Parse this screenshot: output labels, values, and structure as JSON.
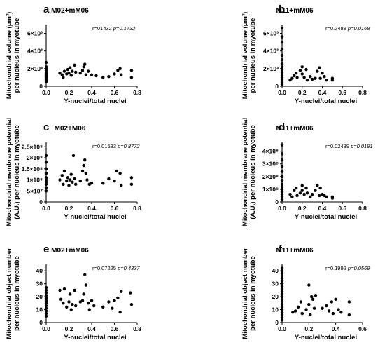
{
  "chart_data": [
    {
      "type": "scatter",
      "letter": "a",
      "title": "M02+mM06",
      "stat_r": "r=01432",
      "stat_p": "p=0.1732",
      "xlabel": "Y-nuclei/total nuclei",
      "ylabel": [
        "Mitochondrial volume (μm³)",
        "per nucleus in myotube"
      ],
      "xlim": [
        0,
        0.8
      ],
      "ylim": [
        0,
        7000
      ],
      "xticks": [
        {
          "value": 0,
          "label": "0.0"
        },
        {
          "value": 0.2,
          "label": "0.2"
        },
        {
          "value": 0.4,
          "label": "0.4"
        },
        {
          "value": 0.6,
          "label": "0.6"
        },
        {
          "value": 0.8,
          "label": "0.8"
        }
      ],
      "yticks": [
        {
          "value": 0,
          "label": "0"
        },
        {
          "value": 2000,
          "label": "2×10³"
        },
        {
          "value": 4000,
          "label": "4×10³"
        },
        {
          "value": 6000,
          "label": "6×10³"
        }
      ],
      "points": [
        [
          0,
          500
        ],
        [
          0,
          700
        ],
        [
          0,
          850
        ],
        [
          0,
          1000
        ],
        [
          0,
          1100
        ],
        [
          0,
          1200
        ],
        [
          0,
          1300
        ],
        [
          0,
          1450
        ],
        [
          0,
          1600
        ],
        [
          0,
          1800
        ],
        [
          0,
          2000
        ],
        [
          0,
          2200
        ],
        [
          0,
          2700
        ],
        [
          0.12,
          1500
        ],
        [
          0.14,
          1300
        ],
        [
          0.15,
          1000
        ],
        [
          0.16,
          1700
        ],
        [
          0.18,
          1400
        ],
        [
          0.19,
          1900
        ],
        [
          0.2,
          1500
        ],
        [
          0.21,
          2100
        ],
        [
          0.22,
          1250
        ],
        [
          0.23,
          1700
        ],
        [
          0.25,
          2400
        ],
        [
          0.26,
          1600
        ],
        [
          0.3,
          1500
        ],
        [
          0.32,
          1800
        ],
        [
          0.33,
          2200
        ],
        [
          0.34,
          2500
        ],
        [
          0.35,
          1300
        ],
        [
          0.37,
          1700
        ],
        [
          0.4,
          1300
        ],
        [
          0.44,
          1200
        ],
        [
          0.5,
          1000
        ],
        [
          0.55,
          1100
        ],
        [
          0.6,
          1400
        ],
        [
          0.63,
          1800
        ],
        [
          0.65,
          2000
        ],
        [
          0.66,
          1300
        ],
        [
          0.75,
          1800
        ],
        [
          0.75,
          1000
        ]
      ]
    },
    {
      "type": "scatter",
      "letter": "b",
      "title": "M11+mM06",
      "stat_r": "r=0.2488",
      "stat_p": "p=0.0168",
      "xlabel": "Y-nuclei/total nuclei",
      "ylabel": [
        "Mitochondrial volume (μm³)",
        "per nucleus in myotube"
      ],
      "xlim": [
        0,
        0.8
      ],
      "ylim": [
        0,
        7000
      ],
      "xticks": [
        {
          "value": 0,
          "label": "0.0"
        },
        {
          "value": 0.2,
          "label": "0.2"
        },
        {
          "value": 0.4,
          "label": "0.4"
        },
        {
          "value": 0.6,
          "label": "0.6"
        },
        {
          "value": 0.8,
          "label": "0.8"
        }
      ],
      "yticks": [
        {
          "value": 0,
          "label": "0"
        },
        {
          "value": 2000,
          "label": "2×10³"
        },
        {
          "value": 4000,
          "label": "4×10³"
        },
        {
          "value": 6000,
          "label": "6×10³"
        }
      ],
      "points": [
        [
          0,
          200
        ],
        [
          0,
          400
        ],
        [
          0,
          600
        ],
        [
          0,
          800
        ],
        [
          0,
          1000
        ],
        [
          0,
          1200
        ],
        [
          0,
          1400
        ],
        [
          0,
          1600
        ],
        [
          0,
          1900
        ],
        [
          0,
          2200
        ],
        [
          0,
          2600
        ],
        [
          0,
          3000
        ],
        [
          0,
          3500
        ],
        [
          0,
          4200
        ],
        [
          0,
          5000
        ],
        [
          0,
          5600
        ],
        [
          0,
          6600
        ],
        [
          0.08,
          700
        ],
        [
          0.1,
          900
        ],
        [
          0.12,
          1200
        ],
        [
          0.14,
          1500
        ],
        [
          0.15,
          1000
        ],
        [
          0.18,
          1800
        ],
        [
          0.2,
          1400
        ],
        [
          0.2,
          2200
        ],
        [
          0.22,
          1000
        ],
        [
          0.24,
          1900
        ],
        [
          0.25,
          700
        ],
        [
          0.28,
          1100
        ],
        [
          0.3,
          800
        ],
        [
          0.33,
          900
        ],
        [
          0.35,
          1700
        ],
        [
          0.37,
          2100
        ],
        [
          0.38,
          900
        ],
        [
          0.4,
          1500
        ],
        [
          0.42,
          1100
        ],
        [
          0.44,
          700
        ],
        [
          0.5,
          900
        ],
        [
          0.5,
          700
        ]
      ]
    },
    {
      "type": "scatter",
      "letter": "c",
      "title": "M02+M06",
      "stat_r": "r=0.01633",
      "stat_p": "p=0.8772",
      "xlabel": "Y-nuclei/total nuclei",
      "ylabel": [
        "Mitochondrial membrane potential",
        "(A.U.) per nucleus in myotube"
      ],
      "xlim": [
        0,
        0.8
      ],
      "ylim": [
        0,
        270000000
      ],
      "xticks": [
        {
          "value": 0,
          "label": "0.0"
        },
        {
          "value": 0.2,
          "label": "0.2"
        },
        {
          "value": 0.4,
          "label": "0.4"
        },
        {
          "value": 0.6,
          "label": "0.6"
        },
        {
          "value": 0.8,
          "label": "0.8"
        }
      ],
      "yticks": [
        {
          "value": 0,
          "label": "0"
        },
        {
          "value": 50000000,
          "label": "5×10⁷"
        },
        {
          "value": 100000000,
          "label": "1×10⁸"
        },
        {
          "value": 150000000,
          "label": "1.5×10⁸"
        },
        {
          "value": 200000000,
          "label": "2×10⁸"
        },
        {
          "value": 250000000,
          "label": "2.5×10⁸"
        }
      ],
      "points": [
        [
          0,
          50000000
        ],
        [
          0,
          65000000
        ],
        [
          0,
          80000000
        ],
        [
          0,
          90000000
        ],
        [
          0,
          100000000
        ],
        [
          0,
          110000000
        ],
        [
          0,
          130000000
        ],
        [
          0,
          150000000
        ],
        [
          0,
          180000000
        ],
        [
          0,
          210000000
        ],
        [
          0.12,
          100000000
        ],
        [
          0.14,
          120000000
        ],
        [
          0.15,
          80000000
        ],
        [
          0.16,
          140000000
        ],
        [
          0.18,
          95000000
        ],
        [
          0.19,
          110000000
        ],
        [
          0.2,
          75000000
        ],
        [
          0.21,
          100000000
        ],
        [
          0.22,
          125000000
        ],
        [
          0.23,
          90000000
        ],
        [
          0.24,
          210000000
        ],
        [
          0.25,
          105000000
        ],
        [
          0.26,
          80000000
        ],
        [
          0.3,
          95000000
        ],
        [
          0.32,
          140000000
        ],
        [
          0.33,
          165000000
        ],
        [
          0.34,
          190000000
        ],
        [
          0.35,
          130000000
        ],
        [
          0.36,
          100000000
        ],
        [
          0.38,
          80000000
        ],
        [
          0.4,
          85000000
        ],
        [
          0.5,
          85000000
        ],
        [
          0.55,
          105000000
        ],
        [
          0.6,
          95000000
        ],
        [
          0.62,
          140000000
        ],
        [
          0.65,
          130000000
        ],
        [
          0.66,
          75000000
        ],
        [
          0.75,
          110000000
        ],
        [
          0.75,
          80000000
        ]
      ]
    },
    {
      "type": "scatter",
      "letter": "d",
      "title": "M11+mM06",
      "stat_r": "r=0.02439",
      "stat_p": "p=0.0191",
      "xlabel": "Y-nuclei/total nuclei",
      "ylabel": [
        "Mitochondrial membrane potential",
        "(A.U.) per nucleus in myotube"
      ],
      "xlim": [
        0,
        0.8
      ],
      "ylim": [
        0,
        470000000
      ],
      "xticks": [
        {
          "value": 0,
          "label": "0.0"
        },
        {
          "value": 0.2,
          "label": "0.2"
        },
        {
          "value": 0.4,
          "label": "0.4"
        },
        {
          "value": 0.6,
          "label": "0.6"
        },
        {
          "value": 0.8,
          "label": "0.8"
        }
      ],
      "yticks": [
        {
          "value": 0,
          "label": "0"
        },
        {
          "value": 100000000,
          "label": "1×10⁸"
        },
        {
          "value": 200000000,
          "label": "2×10⁸"
        },
        {
          "value": 300000000,
          "label": "3×10⁸"
        },
        {
          "value": 400000000,
          "label": "4×10⁸"
        }
      ],
      "points": [
        [
          0,
          20000000
        ],
        [
          0,
          40000000
        ],
        [
          0,
          60000000
        ],
        [
          0,
          80000000
        ],
        [
          0,
          100000000
        ],
        [
          0,
          120000000
        ],
        [
          0,
          140000000
        ],
        [
          0,
          170000000
        ],
        [
          0,
          200000000
        ],
        [
          0,
          240000000
        ],
        [
          0,
          280000000
        ],
        [
          0,
          330000000
        ],
        [
          0,
          380000000
        ],
        [
          0,
          450000000
        ],
        [
          0.08,
          60000000
        ],
        [
          0.1,
          40000000
        ],
        [
          0.12,
          90000000
        ],
        [
          0.14,
          110000000
        ],
        [
          0.15,
          50000000
        ],
        [
          0.18,
          70000000
        ],
        [
          0.2,
          130000000
        ],
        [
          0.2,
          90000000
        ],
        [
          0.22,
          60000000
        ],
        [
          0.24,
          110000000
        ],
        [
          0.25,
          70000000
        ],
        [
          0.28,
          40000000
        ],
        [
          0.3,
          60000000
        ],
        [
          0.33,
          90000000
        ],
        [
          0.35,
          130000000
        ],
        [
          0.37,
          50000000
        ],
        [
          0.38,
          110000000
        ],
        [
          0.4,
          60000000
        ],
        [
          0.42,
          50000000
        ],
        [
          0.44,
          40000000
        ],
        [
          0.5,
          40000000
        ],
        [
          0.5,
          30000000
        ]
      ]
    },
    {
      "type": "scatter",
      "letter": "e",
      "title": "M02+mM06",
      "stat_r": "r=0.07225",
      "stat_p": "p=0.4337",
      "xlabel": "Y-nuclei/total nuclei",
      "ylabel": [
        "Mitochondrial object number",
        "per nucleus in myotube"
      ],
      "xlim": [
        0,
        0.8
      ],
      "ylim": [
        0,
        45
      ],
      "xticks": [
        {
          "value": 0,
          "label": "0.0"
        },
        {
          "value": 0.2,
          "label": "0.2"
        },
        {
          "value": 0.4,
          "label": "0.4"
        },
        {
          "value": 0.6,
          "label": "0.6"
        },
        {
          "value": 0.8,
          "label": "0.8"
        }
      ],
      "yticks": [
        {
          "value": 0,
          "label": "0"
        },
        {
          "value": 10,
          "label": "10"
        },
        {
          "value": 20,
          "label": "20"
        },
        {
          "value": 30,
          "label": "30"
        },
        {
          "value": 40,
          "label": "40"
        }
      ],
      "points": [
        [
          0,
          5
        ],
        [
          0,
          7
        ],
        [
          0,
          9
        ],
        [
          0,
          11
        ],
        [
          0,
          13
        ],
        [
          0,
          15
        ],
        [
          0,
          17
        ],
        [
          0,
          19
        ],
        [
          0,
          21
        ],
        [
          0,
          23
        ],
        [
          0,
          25
        ],
        [
          0,
          27
        ],
        [
          0.12,
          25
        ],
        [
          0.13,
          18
        ],
        [
          0.15,
          15
        ],
        [
          0.16,
          26
        ],
        [
          0.18,
          12
        ],
        [
          0.2,
          16
        ],
        [
          0.21,
          22
        ],
        [
          0.22,
          10
        ],
        [
          0.23,
          14
        ],
        [
          0.25,
          25
        ],
        [
          0.26,
          13
        ],
        [
          0.3,
          16
        ],
        [
          0.32,
          17
        ],
        [
          0.33,
          22
        ],
        [
          0.34,
          37
        ],
        [
          0.35,
          29
        ],
        [
          0.37,
          15
        ],
        [
          0.38,
          10
        ],
        [
          0.4,
          17
        ],
        [
          0.42,
          13
        ],
        [
          0.5,
          12
        ],
        [
          0.55,
          16
        ],
        [
          0.58,
          11
        ],
        [
          0.6,
          17
        ],
        [
          0.63,
          19
        ],
        [
          0.65,
          8
        ],
        [
          0.66,
          24
        ],
        [
          0.74,
          23
        ],
        [
          0.75,
          14
        ]
      ]
    },
    {
      "type": "scatter",
      "letter": "f",
      "title": "M11+mM06",
      "stat_r": "r=0.1992",
      "stat_p": "p=0.0569",
      "xlabel": "Y-nuclei/total nuclei",
      "ylabel": [
        "Mitochondrial object number",
        "per nucleus in myotube"
      ],
      "xlim": [
        0,
        0.6
      ],
      "ylim": [
        0,
        45
      ],
      "xticks": [
        {
          "value": 0,
          "label": "0.0"
        },
        {
          "value": 0.2,
          "label": "0.2"
        },
        {
          "value": 0.4,
          "label": "0.4"
        },
        {
          "value": 0.6,
          "label": "0.6"
        }
      ],
      "yticks": [
        {
          "value": 0,
          "label": "0"
        },
        {
          "value": 10,
          "label": "10"
        },
        {
          "value": 20,
          "label": "20"
        },
        {
          "value": 30,
          "label": "30"
        },
        {
          "value": 40,
          "label": "40"
        }
      ],
      "points": [
        [
          0,
          2
        ],
        [
          0,
          4
        ],
        [
          0,
          6
        ],
        [
          0,
          8
        ],
        [
          0,
          10
        ],
        [
          0,
          12
        ],
        [
          0,
          14
        ],
        [
          0,
          16
        ],
        [
          0,
          18
        ],
        [
          0,
          20
        ],
        [
          0,
          22
        ],
        [
          0,
          24
        ],
        [
          0,
          26
        ],
        [
          0,
          28
        ],
        [
          0,
          30
        ],
        [
          0,
          32
        ],
        [
          0,
          34
        ],
        [
          0,
          36
        ],
        [
          0,
          38
        ],
        [
          0,
          40
        ],
        [
          0,
          42
        ],
        [
          0.08,
          8
        ],
        [
          0.1,
          9
        ],
        [
          0.12,
          12
        ],
        [
          0.14,
          16
        ],
        [
          0.15,
          7
        ],
        [
          0.18,
          10
        ],
        [
          0.2,
          29
        ],
        [
          0.2,
          14
        ],
        [
          0.21,
          6
        ],
        [
          0.22,
          20
        ],
        [
          0.23,
          18
        ],
        [
          0.24,
          11
        ],
        [
          0.25,
          21
        ],
        [
          0.3,
          11
        ],
        [
          0.33,
          13
        ],
        [
          0.35,
          9
        ],
        [
          0.37,
          16
        ],
        [
          0.38,
          7
        ],
        [
          0.4,
          18
        ],
        [
          0.42,
          10
        ],
        [
          0.44,
          8
        ],
        [
          0.5,
          16
        ],
        [
          0.5,
          6
        ]
      ]
    }
  ]
}
